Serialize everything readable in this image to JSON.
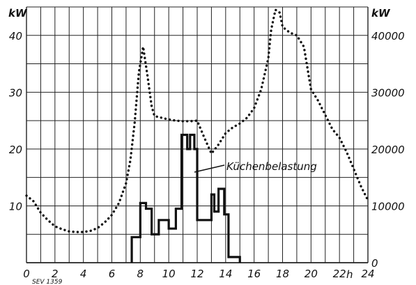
{
  "chart_data": {
    "type": "line",
    "title": "",
    "grid": true,
    "x_axis": {
      "range": [
        0,
        24
      ],
      "ticks": [
        "0",
        "2",
        "4",
        "6",
        "8",
        "10",
        "12",
        "14",
        "16",
        "18",
        "20",
        "22",
        "24"
      ],
      "unit_label": "h"
    },
    "y_left": {
      "unit_label": "kW",
      "range": [
        0,
        45
      ],
      "ticks": [
        "10",
        "20",
        "30",
        "40"
      ]
    },
    "y_right": {
      "unit_label": "kW",
      "range": [
        0,
        45000
      ],
      "ticks": [
        "0",
        "10000",
        "20000",
        "30000",
        "40000"
      ]
    },
    "series": [
      {
        "name": "",
        "axis": "right",
        "style": "dotted",
        "x": [
          0,
          0.5,
          1,
          1.5,
          2,
          2.5,
          3,
          3.5,
          4,
          4.5,
          5,
          5.5,
          6,
          6.5,
          7,
          7.3,
          7.6,
          7.9,
          8.2,
          8.5,
          8.8,
          9,
          9.5,
          10,
          10.5,
          11,
          11.5,
          12,
          12.5,
          13,
          13.5,
          14,
          14.5,
          15,
          15.5,
          16,
          16.5,
          17,
          17.2,
          17.5,
          17.8,
          18,
          18.5,
          19,
          19.5,
          20,
          20.5,
          21,
          21.5,
          22,
          22.5,
          23,
          23.5,
          24
        ],
        "y": [
          11800,
          10800,
          8800,
          7500,
          6400,
          5900,
          5500,
          5400,
          5400,
          5600,
          6100,
          7100,
          8400,
          10500,
          14000,
          18000,
          24500,
          33500,
          38000,
          33000,
          27500,
          25800,
          25500,
          25200,
          25000,
          24900,
          24900,
          25000,
          22000,
          19200,
          20800,
          22800,
          23800,
          24500,
          25500,
          27200,
          30500,
          36000,
          41000,
          44500,
          44000,
          41500,
          40500,
          40000,
          38000,
          30500,
          28500,
          26000,
          23500,
          22000,
          19500,
          16500,
          13500,
          11000
        ]
      },
      {
        "name": "Küchenbelastung",
        "axis": "left",
        "style": "step",
        "x": [
          7.4,
          7.6,
          8.0,
          8.4,
          8.8,
          9.3,
          10.0,
          10.5,
          10.9,
          11.3,
          11.5,
          11.8,
          12.0,
          12.8,
          13.0,
          13.2,
          13.5,
          13.9,
          14.2,
          15.0
        ],
        "y": [
          4.5,
          4.5,
          10.5,
          9.5,
          5.0,
          7.5,
          6.0,
          9.5,
          22.5,
          20.0,
          22.5,
          20.0,
          7.5,
          7.5,
          12.0,
          9.0,
          13.0,
          8.5,
          1.0,
          0
        ]
      }
    ],
    "annotations": [
      {
        "text": "Küchenbelastung",
        "points_to": "Küchenbelastung"
      },
      {
        "text": "SEV 1359"
      }
    ]
  }
}
